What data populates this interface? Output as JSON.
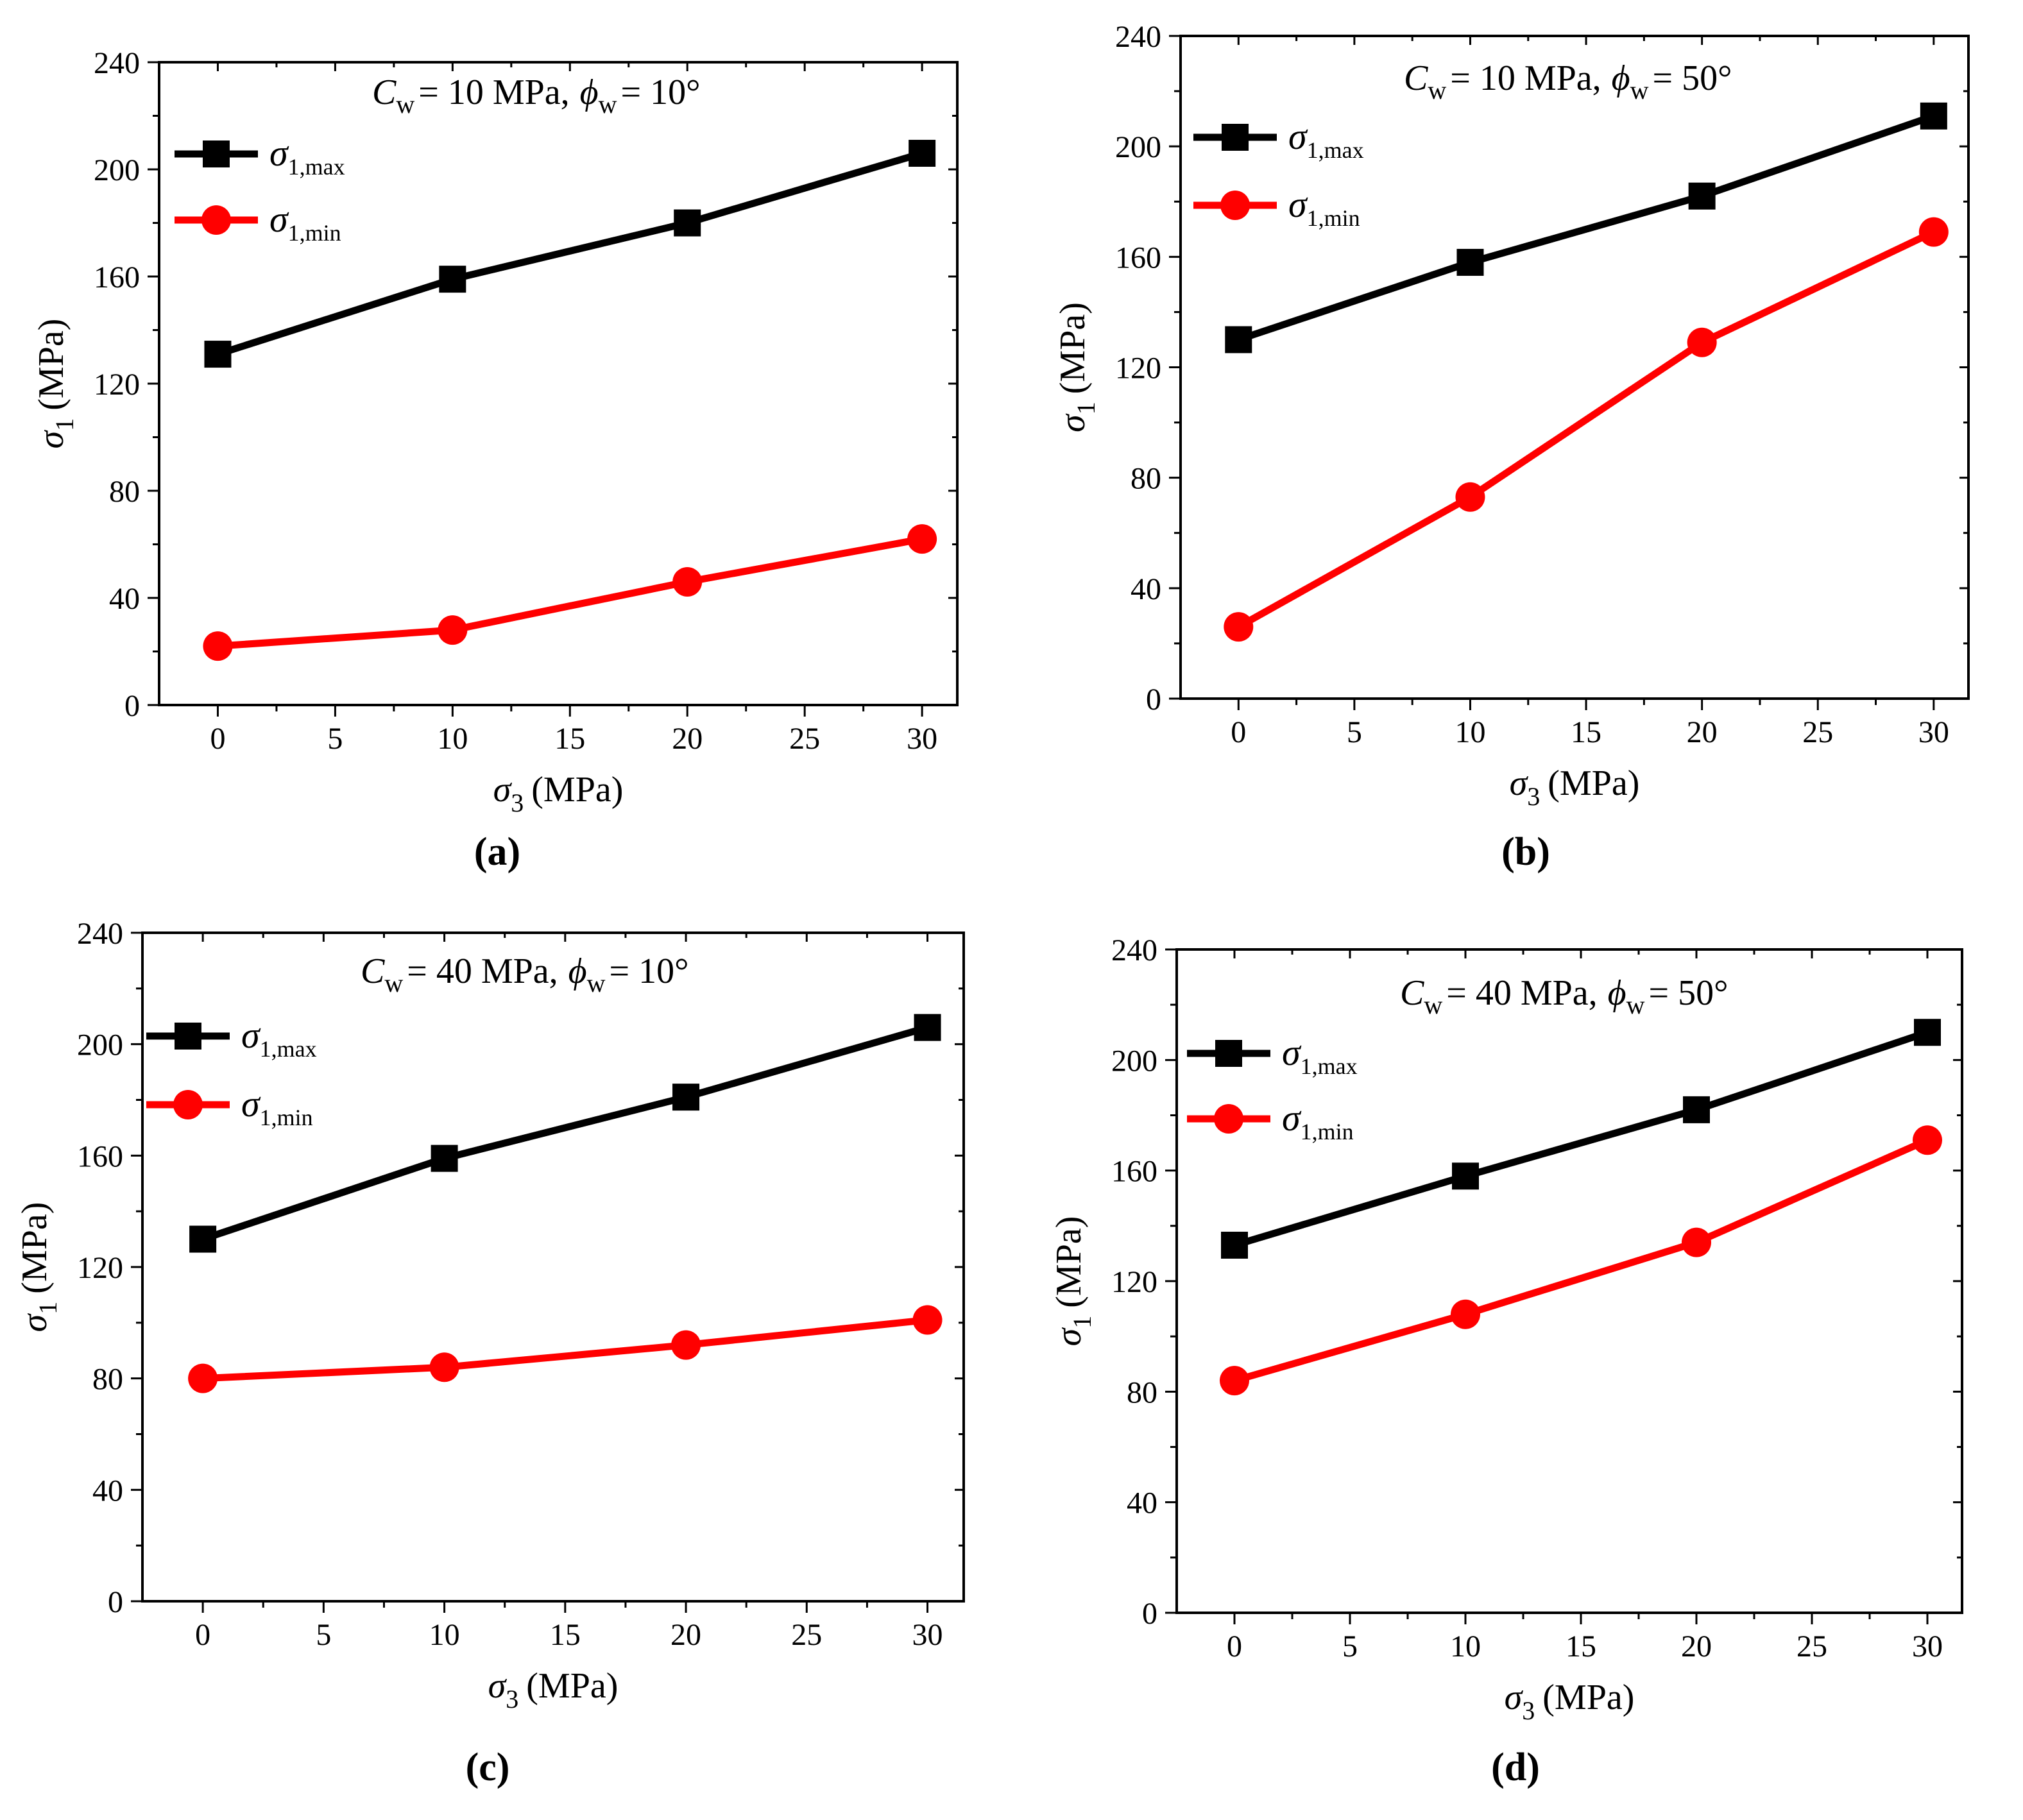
{
  "chart_data": [
    {
      "type": "line",
      "panel_label": "(a)",
      "annotation": {
        "c_symbol": "C",
        "c_sub": "w",
        "c_value": "= 10 MPa,",
        "phi_symbol": "ϕ",
        "phi_sub": "w",
        "phi_value": "= 10°"
      },
      "xlabel": {
        "symbol": "σ",
        "sub": "3",
        "unit": "(MPa)"
      },
      "ylabel": {
        "symbol": "σ",
        "sub": "1",
        "unit": "(MPa)"
      },
      "xlim": [
        -2.5,
        31.5
      ],
      "ylim": [
        0,
        240
      ],
      "xticks": [
        0,
        5,
        10,
        15,
        20,
        25,
        30
      ],
      "yticks": [
        0,
        40,
        80,
        120,
        160,
        200,
        240
      ],
      "x": [
        0,
        10,
        20,
        30
      ],
      "series": [
        {
          "name": "σ1,max",
          "legend_symbol": "σ",
          "legend_sub": "1,max",
          "marker": "square",
          "color": "#000000",
          "values": [
            131,
            159,
            180,
            206
          ]
        },
        {
          "name": "σ1,min",
          "legend_symbol": "σ",
          "legend_sub": "1,min",
          "marker": "circle",
          "color": "#ff0000",
          "values": [
            22,
            28,
            46,
            62
          ]
        }
      ]
    },
    {
      "type": "line",
      "panel_label": "(b)",
      "annotation": {
        "c_symbol": "C",
        "c_sub": "w",
        "c_value": "= 10 MPa,",
        "phi_symbol": "ϕ",
        "phi_sub": "w",
        "phi_value": "= 50°"
      },
      "xlabel": {
        "symbol": "σ",
        "sub": "3",
        "unit": "(MPa)"
      },
      "ylabel": {
        "symbol": "σ",
        "sub": "1",
        "unit": "(MPa)"
      },
      "xlim": [
        -2.5,
        31.5
      ],
      "ylim": [
        0,
        240
      ],
      "xticks": [
        0,
        5,
        10,
        15,
        20,
        25,
        30
      ],
      "yticks": [
        0,
        40,
        80,
        120,
        160,
        200,
        240
      ],
      "x": [
        0,
        10,
        20,
        30
      ],
      "series": [
        {
          "name": "σ1,max",
          "legend_symbol": "σ",
          "legend_sub": "1,max",
          "marker": "square",
          "color": "#000000",
          "values": [
            130,
            158,
            182,
            211
          ]
        },
        {
          "name": "σ1,min",
          "legend_symbol": "σ",
          "legend_sub": "1,min",
          "marker": "circle",
          "color": "#ff0000",
          "values": [
            26,
            73,
            129,
            169
          ]
        }
      ]
    },
    {
      "type": "line",
      "panel_label": "(c)",
      "annotation": {
        "c_symbol": "C",
        "c_sub": "w",
        "c_value": "= 40 MPa,",
        "phi_symbol": "ϕ",
        "phi_sub": "w",
        "phi_value": "= 10°"
      },
      "xlabel": {
        "symbol": "σ",
        "sub": "3",
        "unit": "(MPa)"
      },
      "ylabel": {
        "symbol": "σ",
        "sub": "1",
        "unit": "(MPa)"
      },
      "xlim": [
        -2.5,
        31.5
      ],
      "ylim": [
        0,
        240
      ],
      "xticks": [
        0,
        5,
        10,
        15,
        20,
        25,
        30
      ],
      "yticks": [
        0,
        40,
        80,
        120,
        160,
        200,
        240
      ],
      "x": [
        0,
        10,
        20,
        30
      ],
      "series": [
        {
          "name": "σ1,max",
          "legend_symbol": "σ",
          "legend_sub": "1,max",
          "marker": "square",
          "color": "#000000",
          "values": [
            130,
            159,
            181,
            206
          ]
        },
        {
          "name": "σ1,min",
          "legend_symbol": "σ",
          "legend_sub": "1,min",
          "marker": "circle",
          "color": "#ff0000",
          "values": [
            80,
            84,
            92,
            101
          ]
        }
      ]
    },
    {
      "type": "line",
      "panel_label": "(d)",
      "annotation": {
        "c_symbol": "C",
        "c_sub": "w",
        "c_value": "= 40 MPa,",
        "phi_symbol": "ϕ",
        "phi_sub": "w",
        "phi_value": "= 50°"
      },
      "xlabel": {
        "symbol": "σ",
        "sub": "3",
        "unit": "(MPa)"
      },
      "ylabel": {
        "symbol": "σ",
        "sub": "1",
        "unit": "(MPa)"
      },
      "xlim": [
        -2.5,
        31.5
      ],
      "ylim": [
        0,
        240
      ],
      "xticks": [
        0,
        5,
        10,
        15,
        20,
        25,
        30
      ],
      "yticks": [
        0,
        40,
        80,
        120,
        160,
        200,
        240
      ],
      "x": [
        0,
        10,
        20,
        30
      ],
      "series": [
        {
          "name": "σ1,max",
          "legend_symbol": "σ",
          "legend_sub": "1,max",
          "marker": "square",
          "color": "#000000",
          "values": [
            133,
            158,
            182,
            210
          ]
        },
        {
          "name": "σ1,min",
          "legend_symbol": "σ",
          "legend_sub": "1,min",
          "marker": "circle",
          "color": "#ff0000",
          "values": [
            84,
            108,
            134,
            171
          ]
        }
      ]
    }
  ]
}
